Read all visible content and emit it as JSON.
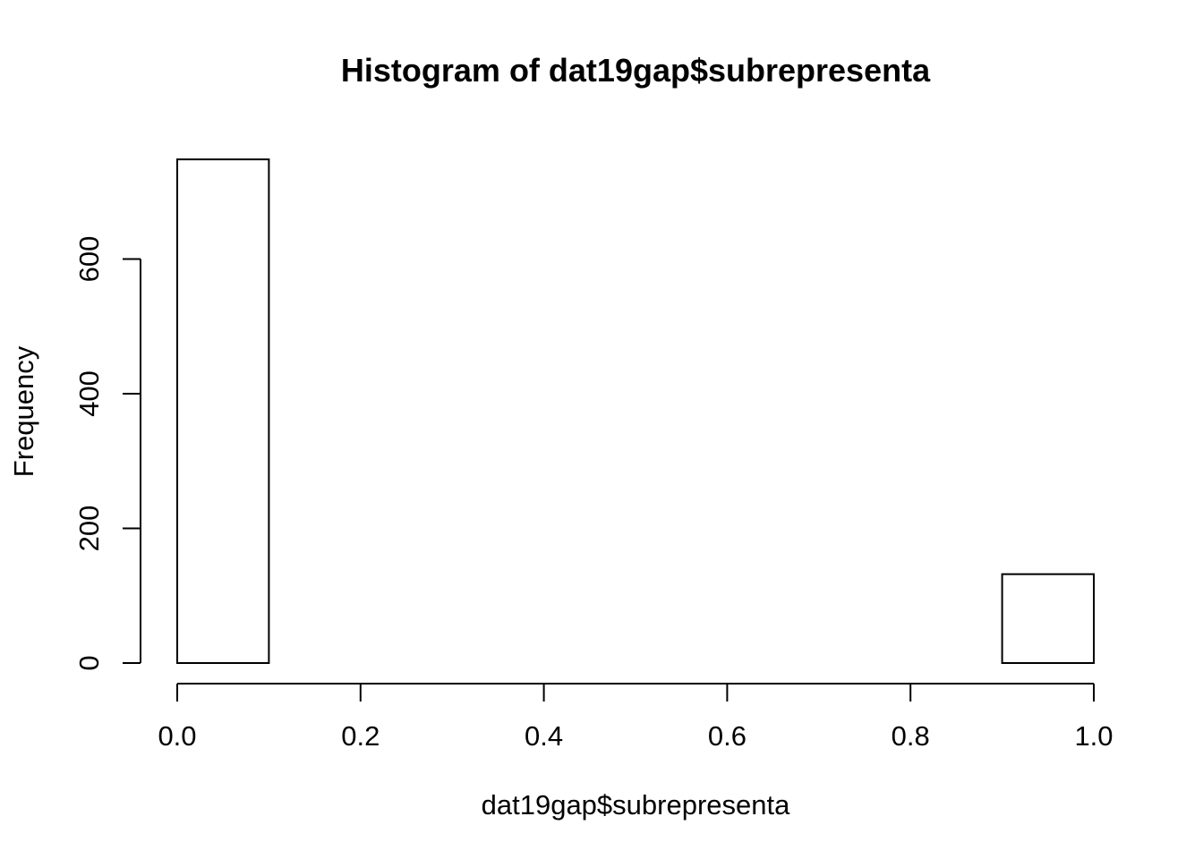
{
  "chart_data": {
    "type": "bar",
    "title": "Histogram of dat19gap$subrepresenta",
    "xlabel": "dat19gap$subrepresenta",
    "ylabel": "Frequency",
    "bins": [
      {
        "x0": 0.0,
        "x1": 0.1,
        "count": 748
      },
      {
        "x0": 0.1,
        "x1": 0.2,
        "count": 0
      },
      {
        "x0": 0.2,
        "x1": 0.3,
        "count": 0
      },
      {
        "x0": 0.3,
        "x1": 0.4,
        "count": 0
      },
      {
        "x0": 0.4,
        "x1": 0.5,
        "count": 0
      },
      {
        "x0": 0.5,
        "x1": 0.6,
        "count": 0
      },
      {
        "x0": 0.6,
        "x1": 0.7,
        "count": 0
      },
      {
        "x0": 0.7,
        "x1": 0.8,
        "count": 0
      },
      {
        "x0": 0.8,
        "x1": 0.9,
        "count": 0
      },
      {
        "x0": 0.9,
        "x1": 1.0,
        "count": 132
      }
    ],
    "xlim": [
      0,
      1
    ],
    "ylim": [
      0,
      748
    ],
    "x_ticks": [
      0.0,
      0.2,
      0.4,
      0.6,
      0.8,
      1.0
    ],
    "x_tick_labels": [
      "0.0",
      "0.2",
      "0.4",
      "0.6",
      "0.8",
      "1.0"
    ],
    "y_ticks": [
      0,
      200,
      400,
      600
    ],
    "y_tick_labels": [
      "0",
      "200",
      "400",
      "600"
    ],
    "grid": false,
    "legend": "none"
  }
}
